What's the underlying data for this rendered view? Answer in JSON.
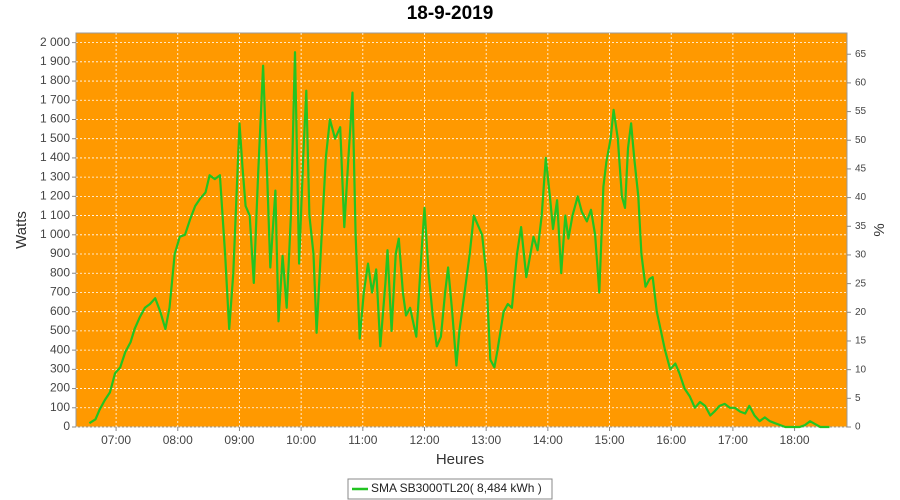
{
  "chart_data": {
    "type": "line",
    "title": "18-9-2019",
    "x_label": "Heures",
    "y_label": "Watts",
    "y2_label": "%",
    "x": [
      "06:34",
      "06:40",
      "06:44",
      "06:49",
      "06:54",
      "06:59",
      "07:04",
      "07:09",
      "07:14",
      "07:18",
      "07:23",
      "07:28",
      "07:33",
      "07:38",
      "07:43",
      "07:48",
      "07:52",
      "07:57",
      "08:02",
      "08:07",
      "08:12",
      "08:17",
      "08:22",
      "08:27",
      "08:31",
      "08:36",
      "08:41",
      "08:46",
      "08:50",
      "08:54",
      "09:00",
      "09:03",
      "09:06",
      "09:10",
      "09:14",
      "09:18",
      "09:23",
      "09:27",
      "09:30",
      "09:35",
      "09:38",
      "09:42",
      "09:46",
      "09:50",
      "09:54",
      "09:58",
      "10:02",
      "10:05",
      "10:08",
      "10:12",
      "10:15",
      "10:19",
      "10:24",
      "10:28",
      "10:33",
      "10:38",
      "10:42",
      "10:46",
      "10:50",
      "10:53",
      "10:57",
      "11:01",
      "11:05",
      "11:09",
      "11:13",
      "11:17",
      "11:22",
      "11:24",
      "11:28",
      "11:32",
      "11:35",
      "11:39",
      "11:42",
      "11:46",
      "11:52",
      "11:57",
      "12:00",
      "12:04",
      "12:08",
      "12:12",
      "12:16",
      "12:20",
      "12:23",
      "12:27",
      "12:31",
      "12:34",
      "12:39",
      "12:44",
      "12:48",
      "12:52",
      "12:56",
      "13:00",
      "13:04",
      "13:08",
      "13:11",
      "13:17",
      "13:21",
      "13:25",
      "13:30",
      "13:34",
      "13:39",
      "13:43",
      "13:46",
      "13:50",
      "13:54",
      "13:58",
      "14:02",
      "14:05",
      "14:09",
      "14:13",
      "14:17",
      "14:20",
      "14:24",
      "14:29",
      "14:33",
      "14:38",
      "14:42",
      "14:46",
      "14:50",
      "14:54",
      "14:57",
      "15:01",
      "15:04",
      "15:08",
      "15:12",
      "15:15",
      "15:18",
      "15:21",
      "15:24",
      "15:28",
      "15:31",
      "15:35",
      "15:39",
      "15:42",
      "15:46",
      "15:50",
      "15:54",
      "15:59",
      "16:04",
      "16:08",
      "16:13",
      "16:18",
      "16:23",
      "16:28",
      "16:33",
      "16:38",
      "16:42",
      "16:47",
      "16:52",
      "16:57",
      "17:02",
      "17:07",
      "17:12",
      "17:16",
      "17:21",
      "17:26",
      "17:31",
      "17:36",
      "17:41",
      "17:46",
      "17:51",
      "17:55",
      "18:05",
      "18:10",
      "18:15",
      "18:20",
      "18:25",
      "18:34"
    ],
    "series": [
      {
        "name": "SMA SB3000TL20( 8,484 kWh )",
        "color": "#22c422",
        "values": [
          20,
          40,
          90,
          140,
          180,
          280,
          310,
          390,
          440,
          510,
          570,
          620,
          640,
          670,
          600,
          510,
          620,
          900,
          990,
          1000,
          1080,
          1150,
          1190,
          1220,
          1310,
          1290,
          1310,
          900,
          510,
          800,
          1580,
          1350,
          1150,
          1100,
          750,
          1300,
          1880,
          1300,
          830,
          1230,
          550,
          890,
          620,
          1100,
          1950,
          850,
          1400,
          1750,
          1100,
          900,
          490,
          900,
          1400,
          1600,
          1500,
          1560,
          1040,
          1400,
          1740,
          1000,
          460,
          700,
          850,
          700,
          820,
          420,
          750,
          920,
          500,
          900,
          980,
          700,
          580,
          620,
          470,
          900,
          1140,
          800,
          580,
          420,
          470,
          700,
          830,
          600,
          320,
          500,
          700,
          900,
          1100,
          1050,
          1000,
          800,
          350,
          310,
          400,
          600,
          640,
          620,
          900,
          1040,
          780,
          900,
          990,
          920,
          1100,
          1400,
          1200,
          1030,
          1180,
          800,
          1100,
          980,
          1100,
          1200,
          1120,
          1070,
          1130,
          1000,
          700,
          1250,
          1380,
          1500,
          1650,
          1500,
          1200,
          1140,
          1450,
          1580,
          1400,
          1200,
          900,
          730,
          770,
          780,
          600,
          500,
          400,
          300,
          330,
          280,
          200,
          160,
          100,
          130,
          110,
          60,
          80,
          110,
          120,
          100,
          100,
          80,
          70,
          110,
          60,
          30,
          50,
          30,
          20,
          10,
          0,
          0,
          0,
          10,
          30,
          15,
          0,
          0
        ]
      }
    ],
    "xlim": [
      "06:21",
      "18:51"
    ],
    "xticks": [
      "07:00",
      "08:00",
      "09:00",
      "10:00",
      "11:00",
      "12:00",
      "13:00",
      "14:00",
      "15:00",
      "16:00",
      "17:00",
      "18:00"
    ],
    "ylim": [
      0,
      2050
    ],
    "yticks": [
      0,
      100,
      200,
      300,
      400,
      500,
      600,
      700,
      800,
      900,
      {
        "value": 1000,
        "label": "1 000"
      },
      {
        "value": 1100,
        "label": "1 100"
      },
      {
        "value": 1200,
        "label": "1 200"
      },
      {
        "value": 1300,
        "label": "1 300"
      },
      {
        "value": 1400,
        "label": "1 400"
      },
      {
        "value": 1500,
        "label": "1 500"
      },
      {
        "value": 1600,
        "label": "1 600"
      },
      {
        "value": 1700,
        "label": "1 700"
      },
      {
        "value": 1800,
        "label": "1 800"
      },
      {
        "value": 1900,
        "label": "1 900"
      },
      {
        "value": 2000,
        "label": "2 000"
      }
    ],
    "y2lim": [
      0,
      68.7
    ],
    "y2ticks": [
      0,
      5,
      10,
      15,
      20,
      25,
      30,
      35,
      40,
      45,
      50,
      55,
      60,
      65
    ],
    "grid": true,
    "plot_color": "#ff9900",
    "legend": "bottom"
  }
}
